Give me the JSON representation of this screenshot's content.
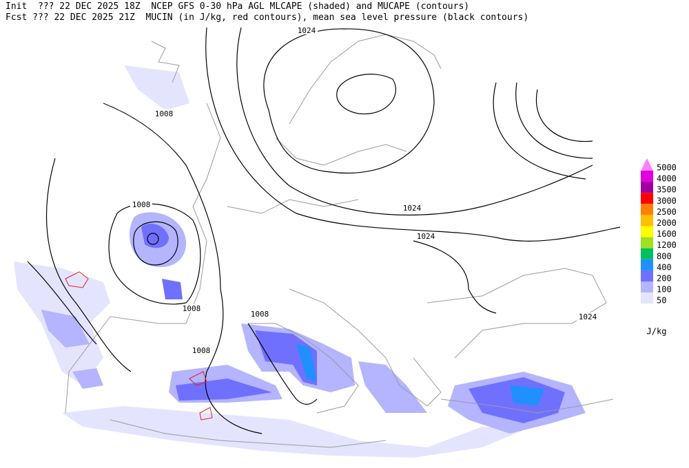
{
  "header": {
    "line1": "Init  ??? 22 DEC 2025 18Z  NCEP GFS 0-30 hPa AGL MLCAPE (shaded) and MUCAPE (contours)",
    "line2": "Fcst ??? 22 DEC 2025 21Z  MUCIN (in J/kg, red contours), mean sea level pressure (black contours)"
  },
  "contour_labels": [
    1024,
    1008,
    1008,
    1024,
    1024,
    1008,
    1008,
    1008,
    1024
  ],
  "legend": {
    "levels": [
      {
        "label": 5000,
        "color": "#ff80ff"
      },
      {
        "label": 4000,
        "color": "#e000e0"
      },
      {
        "label": 3500,
        "color": "#a000a0"
      },
      {
        "label": 3000,
        "color": "#ff0000"
      },
      {
        "label": 2500,
        "color": "#ff8000"
      },
      {
        "label": 2000,
        "color": "#ffc000"
      },
      {
        "label": 1600,
        "color": "#ffff00"
      },
      {
        "label": 1200,
        "color": "#a0e020"
      },
      {
        "label": 800,
        "color": "#00c060"
      },
      {
        "label": 400,
        "color": "#2090ff"
      },
      {
        "label": 200,
        "color": "#7070ff"
      },
      {
        "label": 100,
        "color": "#b4b4ff"
      },
      {
        "label": 50,
        "color": "#e4e4ff"
      }
    ],
    "units": "J/kg"
  }
}
